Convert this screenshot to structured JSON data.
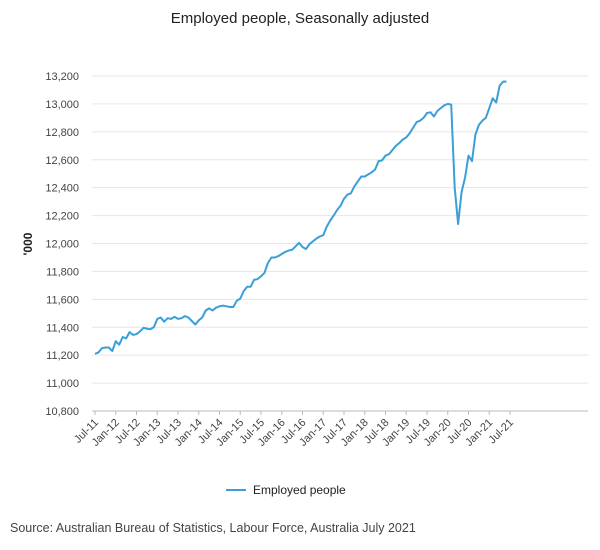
{
  "chart_data": {
    "type": "line",
    "title": "Employed people, Seasonally adjusted",
    "ylabel": "'000",
    "xlabel": "",
    "ylim": [
      10800,
      13200
    ],
    "yticks": [
      10800,
      11000,
      11200,
      11400,
      11600,
      11800,
      12000,
      12200,
      12400,
      12600,
      12800,
      13000,
      13200
    ],
    "ytick_labels": [
      "10,800",
      "11,000",
      "11,200",
      "11,400",
      "11,600",
      "11,800",
      "12,000",
      "12,200",
      "12,400",
      "12,600",
      "12,800",
      "13,000",
      "13,200"
    ],
    "x_tick_labels": [
      "Jul-11",
      "Jan-12",
      "Jul-12",
      "Jan-13",
      "Jul-13",
      "Jan-14",
      "Jul-14",
      "Jan-15",
      "Jul-15",
      "Jan-16",
      "Jul-16",
      "Jan-17",
      "Jul-17",
      "Jan-18",
      "Jul-18",
      "Jan-19",
      "Jul-19",
      "Jan-20",
      "Jul-20",
      "Jan-21",
      "Jul-21"
    ],
    "x_start": "Jul-11",
    "grid": true,
    "legend_position": "bottom",
    "color": "#3a9fd8",
    "series": [
      {
        "name": "Employed people",
        "values": [
          11210,
          11220,
          11250,
          11255,
          11255,
          11230,
          11300,
          11275,
          11330,
          11320,
          11365,
          11345,
          11350,
          11370,
          11395,
          11390,
          11385,
          11400,
          11460,
          11470,
          11440,
          11465,
          11460,
          11475,
          11460,
          11465,
          11480,
          11470,
          11445,
          11420,
          11450,
          11470,
          11520,
          11535,
          11520,
          11540,
          11550,
          11555,
          11550,
          11545,
          11545,
          11590,
          11605,
          11660,
          11690,
          11690,
          11740,
          11745,
          11765,
          11790,
          11860,
          11900,
          11900,
          11910,
          11925,
          11940,
          11950,
          11955,
          11980,
          12005,
          11975,
          11960,
          11995,
          12015,
          12035,
          12050,
          12060,
          12120,
          12165,
          12200,
          12240,
          12270,
          12320,
          12350,
          12360,
          12410,
          12445,
          12480,
          12480,
          12495,
          12510,
          12530,
          12590,
          12595,
          12630,
          12640,
          12670,
          12700,
          12720,
          12745,
          12760,
          12790,
          12830,
          12870,
          12880,
          12900,
          12935,
          12940,
          12910,
          12950,
          12970,
          12990,
          13000,
          12995,
          12400,
          12140,
          12370,
          12470,
          12630,
          12590,
          12780,
          12850,
          12880,
          12900,
          12970,
          13040,
          13010,
          13130,
          13160,
          13160
        ]
      }
    ]
  },
  "source_text": "Source: Australian Bureau of Statistics, Labour Force, Australia July 2021"
}
